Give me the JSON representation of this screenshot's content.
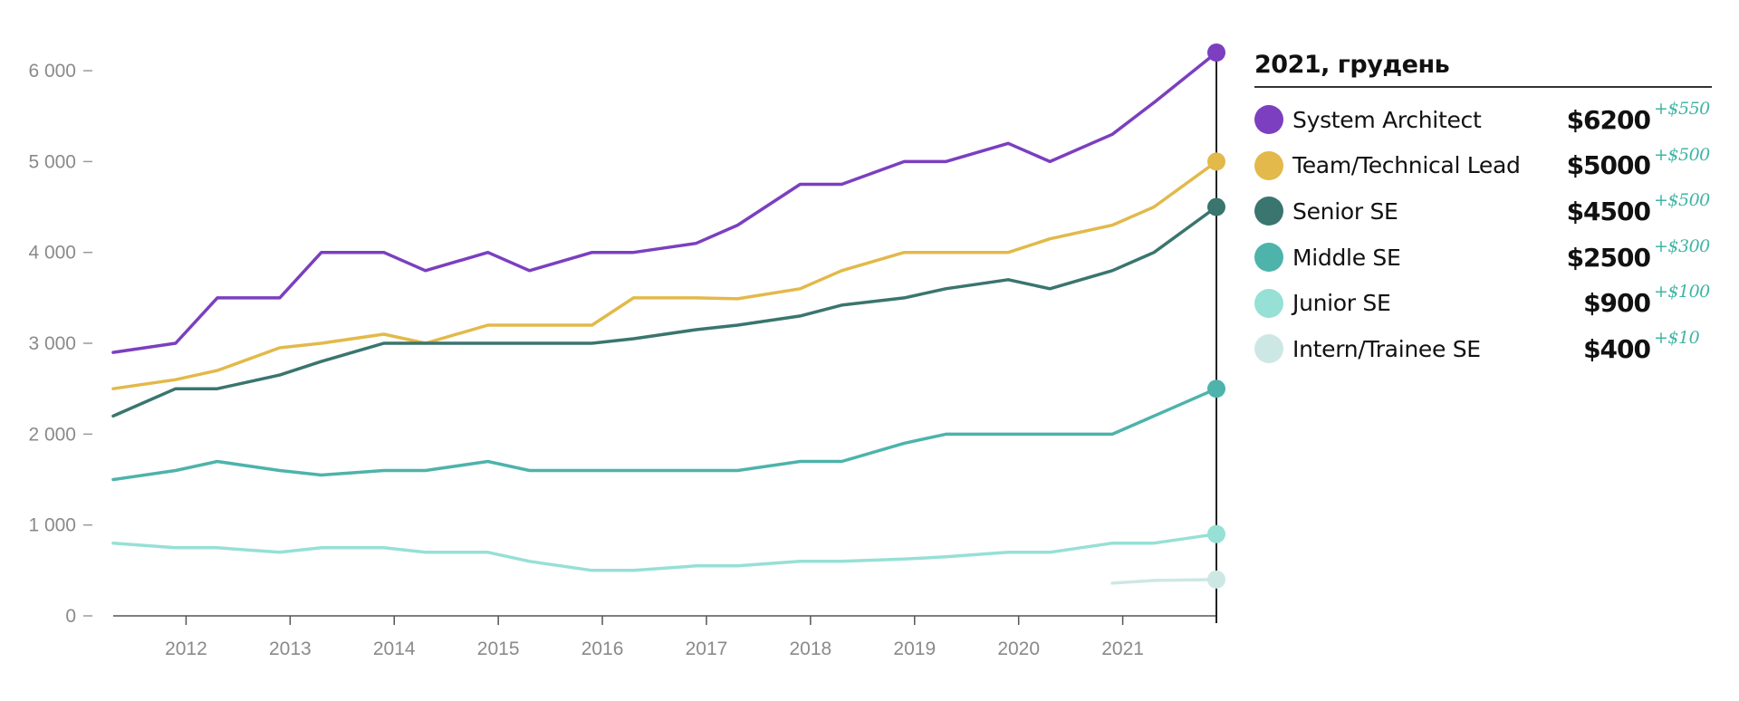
{
  "chart_data": {
    "type": "line",
    "title": "",
    "xlabel": "",
    "ylabel": "",
    "x": [
      2011.3,
      2011.9,
      2012.3,
      2012.9,
      2013.3,
      2013.9,
      2014.3,
      2014.9,
      2015.3,
      2015.9,
      2016.3,
      2016.9,
      2017.3,
      2017.9,
      2018.3,
      2018.9,
      2019.3,
      2019.9,
      2020.3,
      2020.9,
      2021.3,
      2021.9
    ],
    "x_ticks": [
      "2012",
      "2013",
      "2014",
      "2015",
      "2016",
      "2017",
      "2018",
      "2019",
      "2020",
      "2021"
    ],
    "y_ticks": [
      "0",
      "1 000",
      "2 000",
      "3 000",
      "4 000",
      "5 000",
      "6 000"
    ],
    "y_tick_values": [
      0,
      1000,
      2000,
      3000,
      4000,
      5000,
      6000
    ],
    "ylim": [
      0,
      6200
    ],
    "grid": false,
    "legend_position": "right",
    "series": [
      {
        "name": "System Architect",
        "color": "#7b3fbf",
        "values": [
          2900,
          3000,
          3500,
          3500,
          4000,
          4000,
          3800,
          4000,
          3800,
          4000,
          4000,
          4100,
          4300,
          4750,
          4750,
          5000,
          5000,
          5200,
          5000,
          5300,
          5650,
          6200
        ]
      },
      {
        "name": "Team/Technical Lead",
        "color": "#e2b94a",
        "values": [
          2500,
          2600,
          2700,
          2950,
          3000,
          3100,
          3000,
          3200,
          3200,
          3200,
          3500,
          3500,
          3490,
          3600,
          3800,
          4000,
          4000,
          4000,
          4150,
          4300,
          4500,
          5000
        ]
      },
      {
        "name": "Senior SE",
        "color": "#3a756f",
        "values": [
          2200,
          2500,
          2500,
          2650,
          2800,
          3000,
          3000,
          3000,
          3000,
          3000,
          3050,
          3150,
          3200,
          3300,
          3420,
          3500,
          3600,
          3700,
          3600,
          3800,
          4000,
          4500
        ]
      },
      {
        "name": "Middle SE",
        "color": "#4db3ab",
        "values": [
          1500,
          1600,
          1700,
          1600,
          1550,
          1600,
          1600,
          1700,
          1600,
          1600,
          1600,
          1600,
          1600,
          1700,
          1700,
          1900,
          2000,
          2000,
          2000,
          2000,
          2200,
          2500
        ]
      },
      {
        "name": "Junior SE",
        "color": "#96e0d6",
        "values": [
          800,
          750,
          750,
          700,
          750,
          750,
          700,
          700,
          600,
          500,
          500,
          550,
          550,
          600,
          600,
          625,
          650,
          700,
          700,
          800,
          800,
          900
        ]
      },
      {
        "name": "Intern/Trainee SE",
        "color": "#cde8e4",
        "values": [
          null,
          null,
          null,
          null,
          null,
          null,
          null,
          null,
          null,
          null,
          null,
          null,
          null,
          null,
          null,
          null,
          null,
          null,
          null,
          360,
          390,
          400
        ]
      }
    ]
  },
  "legend": {
    "title": "2021, грудень",
    "items": [
      {
        "name": "System Architect",
        "value": "$6200",
        "delta": "+$550"
      },
      {
        "name": "Team/Technical Lead",
        "value": "$5000",
        "delta": "+$500"
      },
      {
        "name": "Senior SE",
        "value": "$4500",
        "delta": "+$500"
      },
      {
        "name": "Middle SE",
        "value": "$2500",
        "delta": "+$300"
      },
      {
        "name": "Junior SE",
        "value": "$900",
        "delta": "+$100"
      },
      {
        "name": "Intern/Trainee SE",
        "value": "$400",
        "delta": "+$10"
      }
    ]
  }
}
